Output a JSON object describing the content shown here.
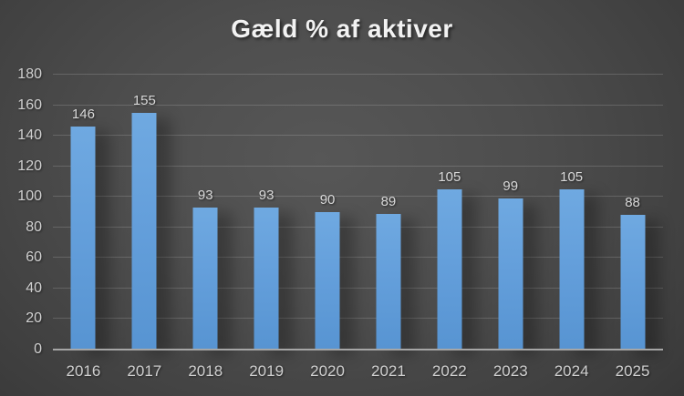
{
  "chart_data": {
    "type": "bar",
    "title": "Gæld % af aktiver",
    "categories": [
      "2016",
      "2017",
      "2018",
      "2019",
      "2020",
      "2021",
      "2022",
      "2023",
      "2024",
      "2025"
    ],
    "values": [
      146,
      155,
      93,
      93,
      90,
      89,
      105,
      99,
      105,
      88
    ],
    "xlabel": "",
    "ylabel": "",
    "ylim": [
      0,
      180
    ],
    "yticks": [
      0,
      20,
      40,
      60,
      80,
      100,
      120,
      140,
      160,
      180
    ],
    "grid": true,
    "legend": false,
    "data_labels_shown": true,
    "colors": {
      "bar": "#5b9bd5",
      "bar_gradient_top": "#6fa9e1",
      "bar_gradient_bottom": "#5794d2",
      "data_label": "#d9d9d9",
      "axis_label": "#d0d0d0",
      "title": "#f2f2f2",
      "axis_line": "#a6a6a6",
      "background_center": "#575757",
      "background_edge": "#242424"
    }
  }
}
